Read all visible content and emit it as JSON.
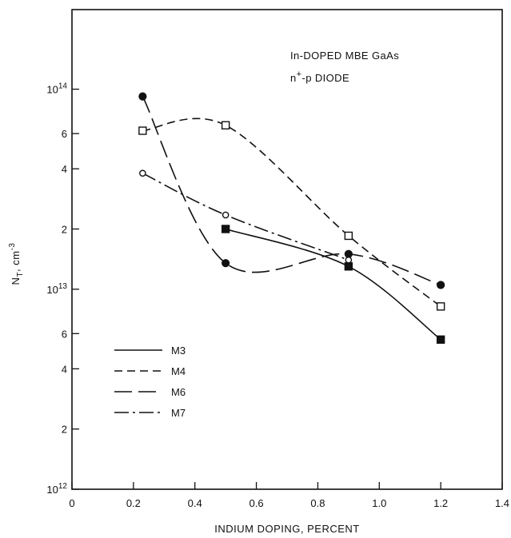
{
  "chart_data": {
    "type": "line",
    "xlabel": "INDIUM DOPING, PERCENT",
    "ylabel_main": "N",
    "ylabel_sub": "T",
    "ylabel_rest": ", cm",
    "ylabel_exp": "-3",
    "annotation_line1": "In-DOPED MBE GaAs",
    "annotation_line2_base": "n",
    "annotation_line2_sup": "+",
    "annotation_line2_rest": "-p DIODE",
    "xlim": [
      0,
      1.4
    ],
    "ylim": [
      1000000000000.0,
      250000000000000.0
    ],
    "y_scale": "log",
    "x_ticks": [
      {
        "value": 0,
        "label": "0"
      },
      {
        "value": 0.2,
        "label": "0.2"
      },
      {
        "value": 0.4,
        "label": "0.4"
      },
      {
        "value": 0.6,
        "label": "0.6"
      },
      {
        "value": 0.8,
        "label": "0.8"
      },
      {
        "value": 1.0,
        "label": "1.0"
      },
      {
        "value": 1.2,
        "label": "1.2"
      },
      {
        "value": 1.4,
        "label": "1.4"
      }
    ],
    "y_ticks": [
      {
        "value": 1000000000000.0,
        "base": "10",
        "exp": "12"
      },
      {
        "value": 2000000000000.0,
        "base": "2",
        "exp": ""
      },
      {
        "value": 4000000000000.0,
        "base": "4",
        "exp": ""
      },
      {
        "value": 6000000000000.0,
        "base": "6",
        "exp": ""
      },
      {
        "value": 10000000000000.0,
        "base": "10",
        "exp": "13"
      },
      {
        "value": 20000000000000.0,
        "base": "2",
        "exp": ""
      },
      {
        "value": 40000000000000.0,
        "base": "4",
        "exp": ""
      },
      {
        "value": 60000000000000.0,
        "base": "6",
        "exp": ""
      },
      {
        "value": 100000000000000.0,
        "base": "10",
        "exp": "14"
      }
    ],
    "legend_position": "bottom-left",
    "series": [
      {
        "name": "M3",
        "dash": "",
        "marker": "filled-square",
        "x": [
          0.5,
          0.9,
          1.2
        ],
        "y": [
          20000000000000.0,
          13000000000000.0,
          5600000000000.0
        ]
      },
      {
        "name": "M4",
        "dash": "10,6",
        "marker": "open-square",
        "x": [
          0.23,
          0.5,
          0.9,
          1.2
        ],
        "y": [
          62000000000000.0,
          66000000000000.0,
          18500000000000.0,
          8200000000000.0
        ]
      },
      {
        "name": "M6",
        "dash": "22,8",
        "marker": "filled-circle",
        "x": [
          0.23,
          0.5,
          0.9,
          1.2
        ],
        "y": [
          92000000000000.0,
          13500000000000.0,
          15000000000000.0,
          10500000000000.0
        ]
      },
      {
        "name": "M7",
        "dash": "18,5,3,5",
        "marker": "open-circle",
        "x": [
          0.23,
          0.5,
          0.9
        ],
        "y": [
          38000000000000.0,
          23500000000000.0,
          14000000000000.0
        ]
      }
    ]
  }
}
